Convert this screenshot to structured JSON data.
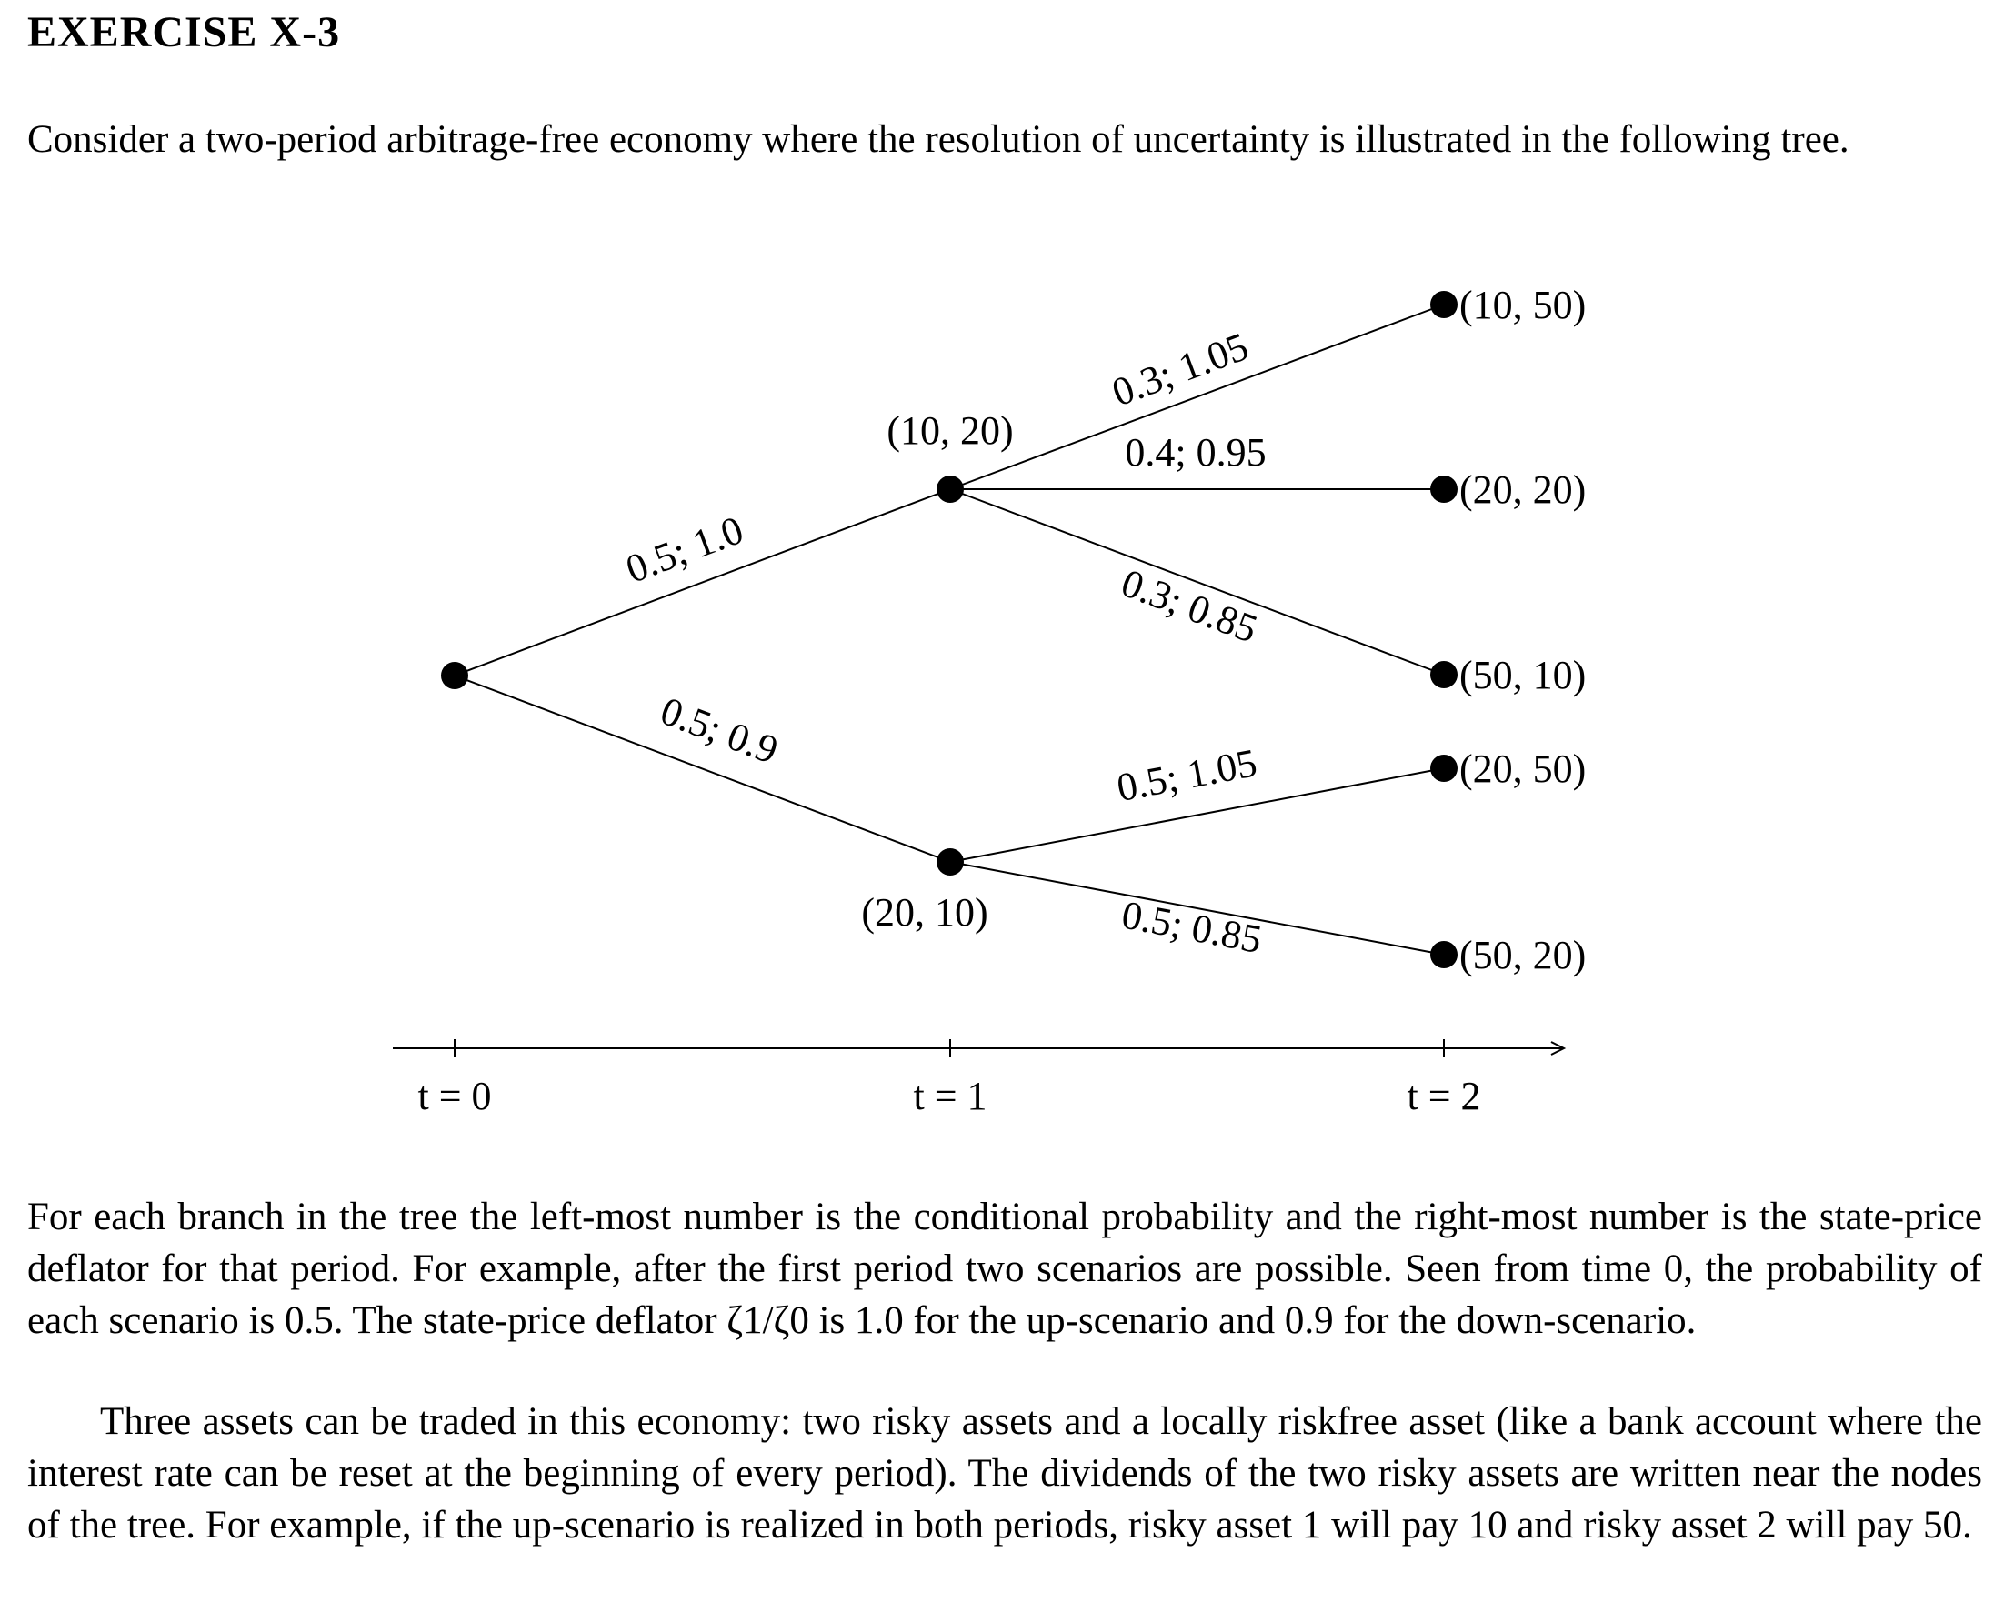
{
  "title": "EXERCISE X-3",
  "intro": "Consider a two-period arbitrage-free economy where the resolution of uncertainty is illustrated in the following tree.",
  "tree": {
    "t1_nodes": [
      {
        "label": "(10, 20)"
      },
      {
        "label": "(20, 10)"
      }
    ],
    "t2_nodes": [
      {
        "label": "(10, 50)"
      },
      {
        "label": "(20, 20)"
      },
      {
        "label": "(50, 10)"
      },
      {
        "label": "(20, 50)"
      },
      {
        "label": "(50, 20)"
      }
    ],
    "branches": [
      {
        "label": "0.5; 1.0"
      },
      {
        "label": "0.5; 0.9"
      },
      {
        "label": "0.3; 1.05"
      },
      {
        "label": "0.4; 0.95"
      },
      {
        "label": "0.3; 0.85"
      },
      {
        "label": "0.5; 1.05"
      },
      {
        "label": "0.5; 0.85"
      }
    ],
    "time_labels": [
      "t = 0",
      "t = 1",
      "t = 2"
    ]
  },
  "para2": "For each branch in the tree the left-most number is the conditional probability and the right-most number is the state-price deflator for that period. For example, after the first period two scenarios are possible. Seen from time 0, the probability of each scenario is 0.5. The state-price deflator ζ1/ζ0 is 1.0 for the up-scenario and 0.9 for the down-scenario.",
  "para3": "Three assets can be traded in this economy: two risky assets and a locally riskfree asset (like a bank account where the interest rate can be reset at the beginning of every period). The dividends of the two risky assets are written near the nodes of the tree. For example, if the up-scenario is realized in both periods, risky asset 1 will pay 10 and risky asset 2 will pay 50."
}
